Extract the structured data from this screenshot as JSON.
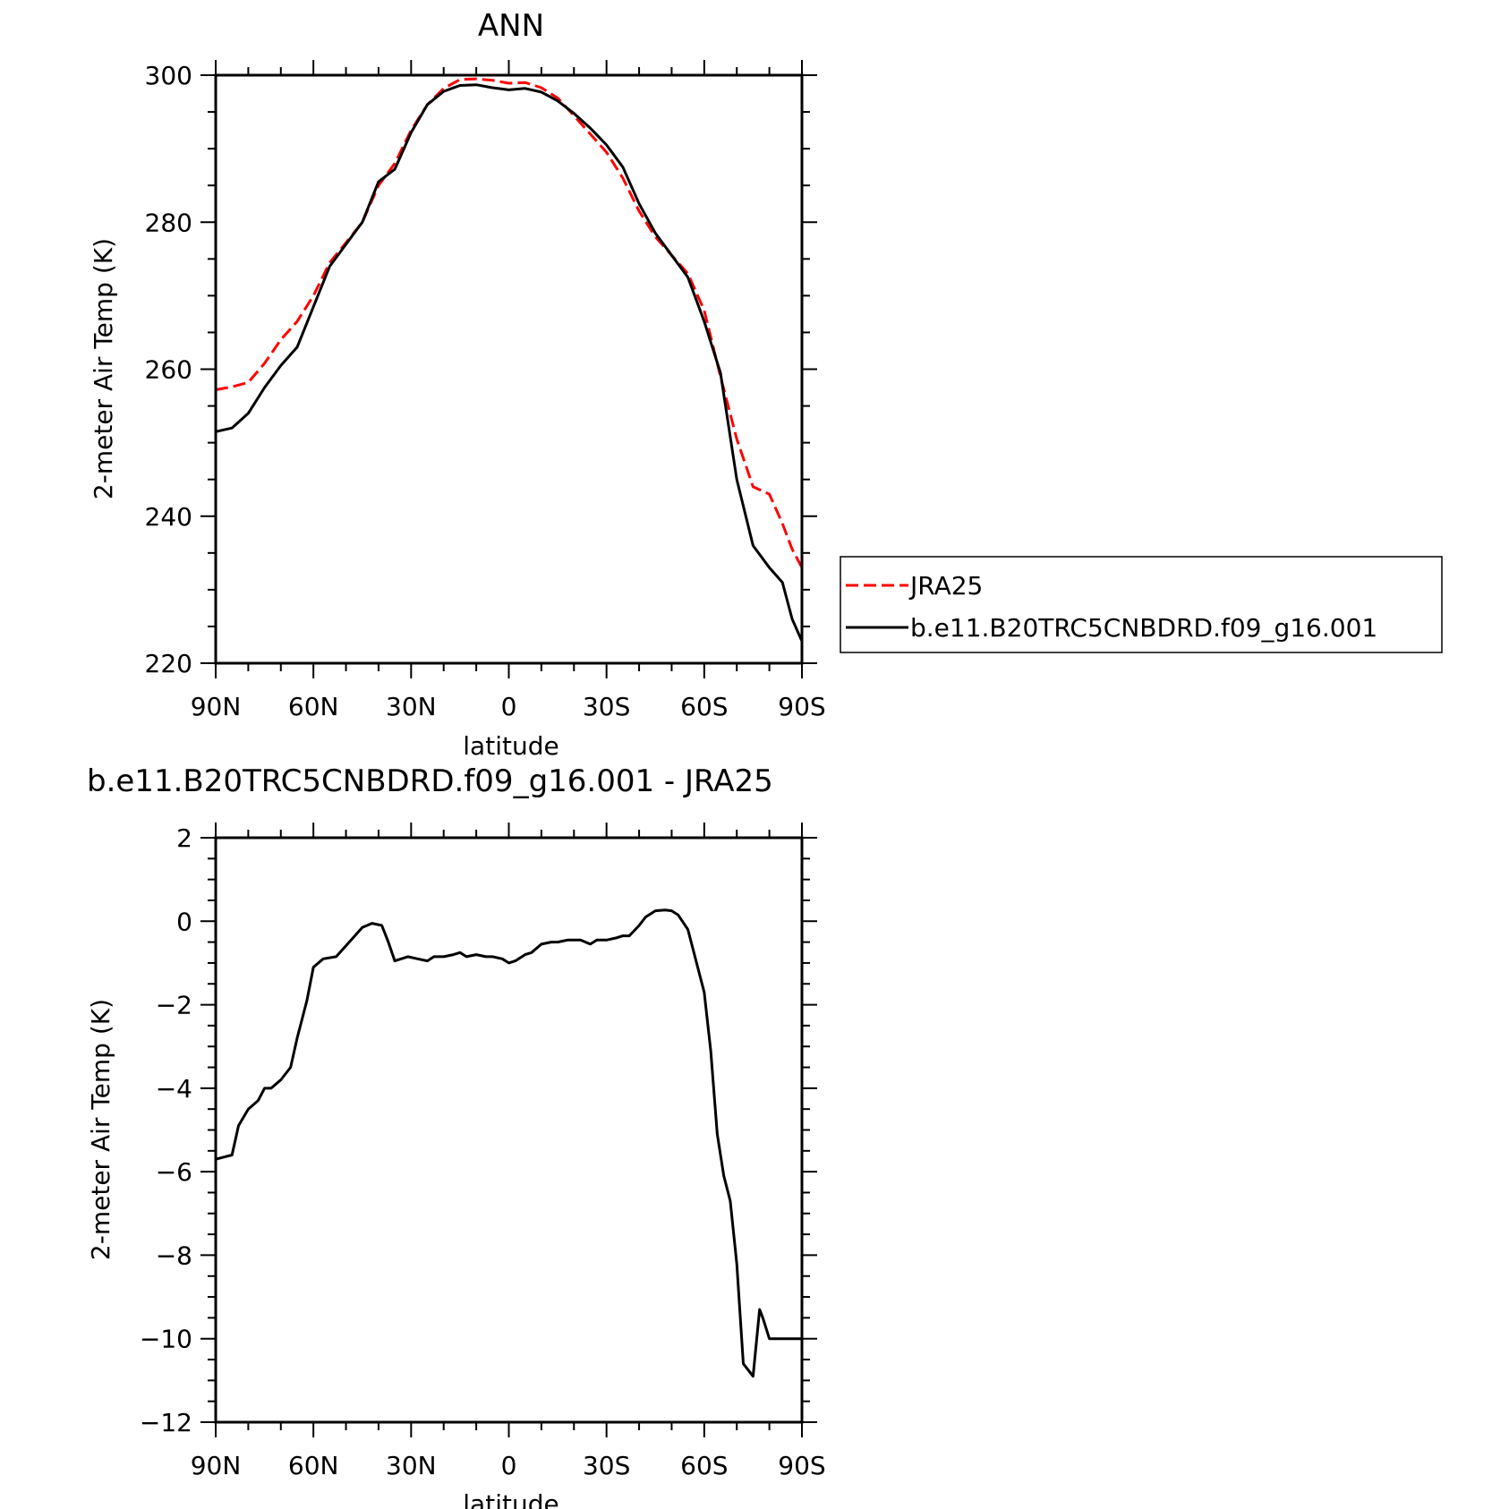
{
  "chart_data": [
    {
      "type": "line",
      "title": "ANN",
      "xlabel": "latitude",
      "ylabel": "2-meter Air Temp (K)",
      "xlim": [
        90,
        -90
      ],
      "ylim": [
        220,
        300
      ],
      "xticks": [
        90,
        60,
        30,
        0,
        -30,
        -60,
        -90
      ],
      "xtick_labels": [
        "90N",
        "60N",
        "30N",
        "0",
        "30S",
        "60S",
        "90S"
      ],
      "yticks": [
        220,
        240,
        260,
        280,
        300
      ],
      "ytick_labels": [
        "220",
        "240",
        "260",
        "280",
        "300"
      ],
      "grid": false,
      "legend_position": "right",
      "series": [
        {
          "name": "JRA25",
          "color": "#ff0000",
          "style": "dashed",
          "x": [
            90,
            85,
            80,
            75,
            70,
            65,
            60,
            55,
            50,
            45,
            40,
            35,
            30,
            25,
            20,
            15,
            10,
            5,
            0,
            -5,
            -10,
            -15,
            -20,
            -25,
            -30,
            -35,
            -40,
            -45,
            -50,
            -55,
            -60,
            -65,
            -70,
            -75,
            -80,
            -84,
            -87,
            -90
          ],
          "values": [
            257.2,
            257.6,
            258.2,
            260.8,
            264.0,
            266.5,
            270.0,
            274.5,
            277.2,
            280.0,
            285.0,
            288.0,
            292.5,
            296.0,
            298.2,
            299.4,
            299.5,
            299.3,
            298.9,
            299.0,
            298.3,
            296.9,
            294.5,
            292.0,
            289.5,
            286.0,
            281.5,
            278.0,
            275.5,
            273.0,
            268.0,
            259.0,
            250.5,
            244.0,
            243.0,
            239.0,
            235.5,
            233.0
          ]
        },
        {
          "name": "b.e11.B20TRC5CNBDRD.f09_g16.001",
          "color": "#000000",
          "style": "solid",
          "x": [
            90,
            85,
            80,
            75,
            70,
            65,
            60,
            55,
            50,
            45,
            40,
            35,
            30,
            25,
            20,
            15,
            10,
            5,
            0,
            -5,
            -10,
            -15,
            -20,
            -25,
            -30,
            -35,
            -40,
            -45,
            -50,
            -55,
            -60,
            -65,
            -70,
            -75,
            -80,
            -84,
            -87,
            -90
          ],
          "values": [
            251.5,
            252.0,
            254.0,
            257.5,
            260.5,
            263.0,
            268.5,
            274.0,
            277.0,
            280.0,
            285.5,
            287.2,
            292.2,
            296.0,
            297.8,
            298.6,
            298.7,
            298.3,
            298.0,
            298.2,
            297.7,
            296.5,
            294.8,
            292.8,
            290.5,
            287.5,
            282.5,
            278.5,
            275.5,
            272.5,
            266.5,
            259.5,
            245.0,
            236.0,
            233.0,
            231.0,
            226.0,
            223.0
          ]
        }
      ]
    },
    {
      "type": "line",
      "title": "b.e11.B20TRC5CNBDRD.f09_g16.001 - JRA25",
      "xlabel": "latitude",
      "ylabel": "2-meter Air Temp (K)",
      "xlim": [
        90,
        -90
      ],
      "ylim": [
        -12,
        2
      ],
      "xticks": [
        90,
        60,
        30,
        0,
        -30,
        -60,
        -90
      ],
      "xtick_labels": [
        "90N",
        "60N",
        "30N",
        "0",
        "30S",
        "60S",
        "90S"
      ],
      "yticks": [
        -12,
        -10,
        -8,
        -6,
        -4,
        -2,
        0,
        2
      ],
      "ytick_labels": [
        "-12",
        "-10",
        "-8",
        "-6",
        "-4",
        "-2",
        "0",
        "2"
      ],
      "grid": false,
      "series": [
        {
          "color": "#000000",
          "style": "solid",
          "x": [
            90,
            85,
            83,
            80,
            77,
            75,
            73,
            70,
            67,
            65,
            62,
            60,
            57,
            53,
            49,
            45,
            42,
            39,
            37,
            35,
            31,
            28,
            25,
            23,
            20,
            17,
            15,
            13,
            10,
            7,
            5,
            2,
            0,
            -2,
            -5,
            -7,
            -10,
            -13,
            -15,
            -18,
            -20,
            -22,
            -25,
            -27,
            -30,
            -33,
            -35,
            -37,
            -40,
            -42,
            -45,
            -48,
            -50,
            -52,
            -55,
            -57,
            -60,
            -62,
            -64,
            -66,
            -68,
            -70,
            -72,
            -75,
            -77,
            -78,
            -80,
            -82,
            -83,
            -84,
            -86,
            -88,
            -90
          ],
          "values": [
            -5.7,
            -5.6,
            -4.9,
            -4.5,
            -4.3,
            -4.0,
            -4.0,
            -3.8,
            -3.5,
            -2.8,
            -1.9,
            -1.1,
            -0.9,
            -0.85,
            -0.5,
            -0.15,
            -0.05,
            -0.1,
            -0.5,
            -0.95,
            -0.85,
            -0.9,
            -0.95,
            -0.85,
            -0.85,
            -0.8,
            -0.75,
            -0.85,
            -0.8,
            -0.85,
            -0.85,
            -0.9,
            -1.0,
            -0.95,
            -0.8,
            -0.75,
            -0.55,
            -0.5,
            -0.5,
            -0.45,
            -0.45,
            -0.45,
            -0.55,
            -0.45,
            -0.45,
            -0.4,
            -0.35,
            -0.35,
            -0.1,
            0.1,
            0.25,
            0.27,
            0.25,
            0.15,
            -0.2,
            -0.8,
            -1.7,
            -3.1,
            -5.1,
            -6.1,
            -6.7,
            -8.2,
            -10.6,
            -10.9,
            -9.3,
            -9.5,
            -10.0,
            -10.0,
            -10.0,
            -10.0,
            -10.0,
            -10.0,
            -10.0
          ]
        }
      ]
    }
  ]
}
